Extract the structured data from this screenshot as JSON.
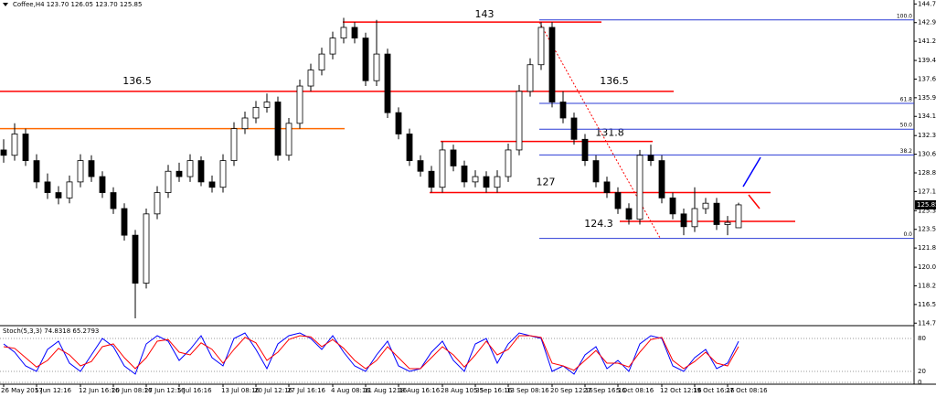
{
  "chart_data": {
    "type": "candlestick",
    "title": "Coffee,H4 123.70 126.05 123.70 125.85",
    "up_color": "#ffffff",
    "down_color": "#000000",
    "categories": [
      "26 May 2017",
      null,
      null,
      "5 Jun 12:16",
      null,
      null,
      null,
      "12 Jun 16:16",
      null,
      null,
      "20 Jun 08:16",
      null,
      null,
      "27 Jun 12:16",
      null,
      null,
      "5 Jul 16:16",
      null,
      null,
      null,
      "13 Jul 08:16",
      null,
      null,
      "20 Jul 12:16",
      null,
      null,
      "27 Jul 16:16",
      null,
      null,
      null,
      "4 Aug 08:16",
      null,
      null,
      "11 Aug 12:16",
      null,
      null,
      "18 Aug 16:16",
      null,
      null,
      null,
      "28 Aug 10:35",
      null,
      null,
      "5 Sep 16:16",
      null,
      null,
      "13 Sep 08:16",
      null,
      null,
      null,
      "20 Sep 12:16",
      null,
      null,
      "27 Sep 16:16",
      null,
      null,
      "5 Oct 08:16",
      null,
      null,
      null,
      "12 Oct 12:16",
      null,
      null,
      "19 Oct 16:16",
      null,
      null,
      "27 Oct 08:16",
      null
    ],
    "ohlc": [
      [
        131,
        132,
        129.8,
        130.5
      ],
      [
        130.5,
        133.5,
        130,
        132.5
      ],
      [
        132.5,
        133,
        129.5,
        130
      ],
      [
        130,
        130.6,
        127.4,
        128
      ],
      [
        128,
        128.8,
        126.4,
        127
      ],
      [
        127,
        127.6,
        125.9,
        126.5
      ],
      [
        126.5,
        128.6,
        126,
        128
      ],
      [
        128,
        130.6,
        127.5,
        130
      ],
      [
        130,
        130.5,
        128,
        128.5
      ],
      [
        128.5,
        129,
        126.5,
        127
      ],
      [
        127,
        127.5,
        125,
        125.5
      ],
      [
        125.5,
        126,
        122.5,
        123
      ],
      [
        123,
        123.5,
        115.2,
        118.5
      ],
      [
        118.5,
        125.5,
        118,
        125
      ],
      [
        125,
        127.6,
        124.5,
        127
      ],
      [
        127,
        129.6,
        126.5,
        129
      ],
      [
        129,
        129.8,
        128,
        128.5
      ],
      [
        128.5,
        130.6,
        128,
        130
      ],
      [
        130,
        130.4,
        127.6,
        128
      ],
      [
        128,
        128.6,
        127,
        127.5
      ],
      [
        127.5,
        130.6,
        127,
        130
      ],
      [
        130,
        133.6,
        129.5,
        133
      ],
      [
        133,
        134.6,
        132.5,
        134
      ],
      [
        134,
        135.6,
        133.5,
        135
      ],
      [
        135,
        136.3,
        134.5,
        135.5
      ],
      [
        135.5,
        136,
        130,
        130.5
      ],
      [
        130.5,
        134,
        130,
        133.5
      ],
      [
        133.5,
        137.6,
        133,
        137
      ],
      [
        137,
        139.1,
        136.5,
        138.5
      ],
      [
        138.5,
        140.6,
        138,
        140
      ],
      [
        140,
        142.1,
        139.5,
        141.5
      ],
      [
        141.5,
        143.4,
        141,
        142.5
      ],
      [
        142.5,
        143,
        141,
        141.5
      ],
      [
        141.5,
        142,
        137,
        137.5
      ],
      [
        137.5,
        143.2,
        137,
        140
      ],
      [
        140,
        140.5,
        134,
        134.5
      ],
      [
        134.5,
        135,
        132,
        132.5
      ],
      [
        132.5,
        133,
        129.5,
        130
      ],
      [
        130,
        130.5,
        128.5,
        129
      ],
      [
        129,
        129.5,
        127,
        127.5
      ],
      [
        127.5,
        131.8,
        127,
        131
      ],
      [
        131,
        131.5,
        129,
        129.5
      ],
      [
        129.5,
        130,
        127.5,
        128
      ],
      [
        128,
        129.1,
        127.5,
        128.5
      ],
      [
        128.5,
        129,
        127,
        127.5
      ],
      [
        127.5,
        129.1,
        127,
        128.5
      ],
      [
        128.5,
        131.6,
        128,
        131
      ],
      [
        131,
        137.1,
        130.5,
        136.5
      ],
      [
        136.5,
        139.6,
        136,
        139
      ],
      [
        139,
        143,
        138.5,
        142.5
      ],
      [
        142.5,
        143,
        135,
        135.5
      ],
      [
        135.5,
        136.5,
        133.5,
        134
      ],
      [
        134,
        134.5,
        131.5,
        132
      ],
      [
        132,
        132.5,
        129.5,
        130
      ],
      [
        130,
        130.5,
        127.5,
        128
      ],
      [
        128,
        128.5,
        126.5,
        127
      ],
      [
        127,
        127.5,
        125,
        125.5
      ],
      [
        125.5,
        126,
        124,
        124.5
      ],
      [
        124.5,
        131,
        124,
        130.5
      ],
      [
        130.5,
        131.5,
        129.5,
        130
      ],
      [
        130,
        130.5,
        126,
        126.5
      ],
      [
        126.5,
        127,
        124.5,
        125
      ],
      [
        125,
        125.5,
        123,
        123.8
      ],
      [
        123.8,
        127.5,
        123.3,
        125.5
      ],
      [
        125.5,
        126.5,
        125,
        126
      ],
      [
        126,
        126.5,
        123.5,
        124
      ],
      [
        124,
        124.8,
        123,
        124.2
      ],
      [
        123.7,
        126.05,
        123.7,
        125.85
      ]
    ],
    "ylim": [
      114.6,
      144.9
    ],
    "yticks": [
      {
        "value": 144.7,
        "label": "144.70"
      },
      142.95,
      {
        "value": 141.2,
        "label": "141.20"
      },
      {
        "value": 139.4,
        "label": "139.40"
      },
      137.65,
      {
        "value": 135.9,
        "label": "135.90"
      },
      134.15,
      132.35,
      {
        "value": 130.6,
        "label": "130.60"
      },
      128.85,
      {
        "value": 127.1,
        "label": "127.10"
      },
      {
        "value": 125.3,
        "label": "125.30"
      },
      123.55,
      {
        "value": 121.8,
        "label": "121.80"
      },
      {
        "value": 120,
        "label": "120.00"
      },
      118.25,
      {
        "value": 116.5,
        "label": "116.50"
      },
      114.75
    ],
    "levels": [
      {
        "value": 143,
        "label": "143.0",
        "color": "#ff0000"
      },
      {
        "value": 136.5,
        "color": "#ff0000"
      },
      {
        "value": 133,
        "color": "#ff6a00"
      },
      {
        "value": 131.8,
        "color": "#ff0000"
      },
      {
        "value": 127,
        "color": "#ff0000"
      },
      {
        "value": 124.3,
        "color": "#ff0000"
      }
    ],
    "fibonacci": {
      "high": 143.2,
      "low": 122.7,
      "color": "#2b3bd6",
      "levels": [
        {
          "value": 100,
          "label": "100.0"
        },
        61.8,
        {
          "value": 50,
          "label": "50.0"
        },
        38.2,
        {
          "value": 0,
          "label": "0.0"
        }
      ]
    },
    "oscillator": {
      "title": "Stoch(5,3,3) 74.8318 65.2793",
      "ylim": [
        0,
        100
      ],
      "yticks": [
        80,
        20,
        0
      ],
      "series": [
        {
          "color": "#0000ff",
          "values": [
            70,
            55,
            30,
            20,
            60,
            75,
            35,
            20,
            50,
            80,
            65,
            30,
            15,
            70,
            85,
            75,
            40,
            60,
            85,
            45,
            30,
            80,
            90,
            60,
            25,
            70,
            85,
            90,
            80,
            60,
            85,
            55,
            30,
            20,
            50,
            75,
            30,
            20,
            25,
            55,
            75,
            40,
            20,
            70,
            80,
            35,
            70,
            90,
            85,
            80,
            20,
            30,
            15,
            50,
            65,
            25,
            40,
            20,
            70,
            85,
            80,
            30,
            20,
            45,
            60,
            25,
            35,
            74.8318
          ]
        },
        {
          "color": "#ff0000",
          "values": [
            65,
            62,
            45,
            28,
            40,
            62,
            50,
            30,
            38,
            65,
            70,
            45,
            25,
            45,
            75,
            78,
            55,
            50,
            72,
            60,
            35,
            60,
            82,
            72,
            40,
            55,
            78,
            85,
            83,
            65,
            78,
            62,
            40,
            25,
            40,
            65,
            45,
            25,
            25,
            45,
            65,
            50,
            28,
            50,
            75,
            50,
            60,
            85,
            85,
            82,
            35,
            30,
            22,
            40,
            58,
            35,
            35,
            28,
            55,
            78,
            82,
            40,
            25,
            38,
            55,
            35,
            30,
            65.2793
          ]
        }
      ]
    }
  }
}
